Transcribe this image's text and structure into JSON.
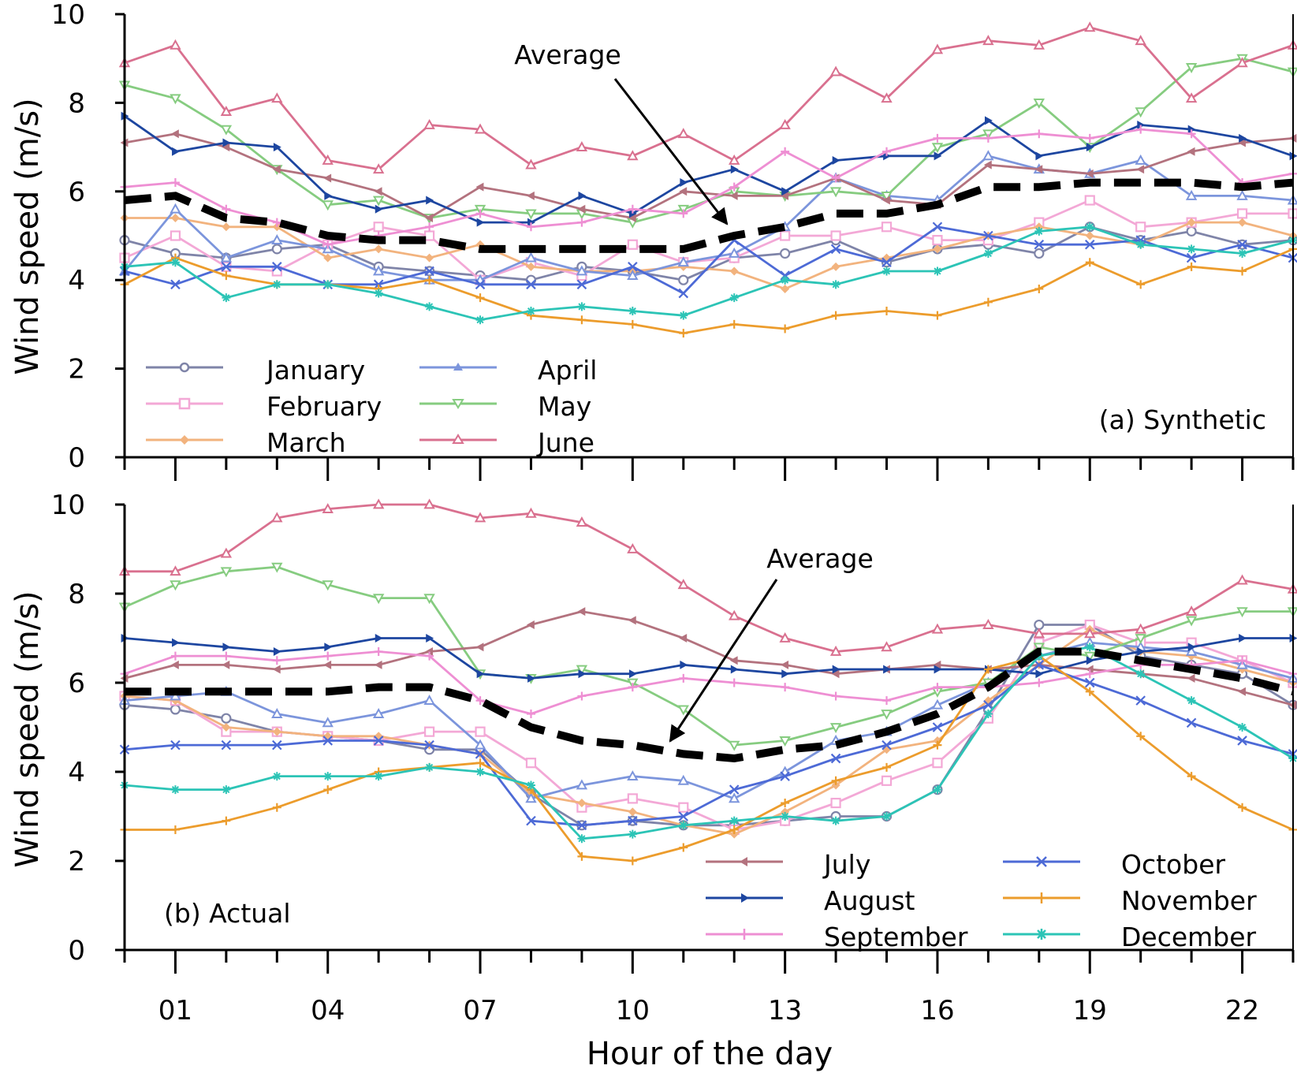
{
  "figure": {
    "xlabel": "Hour of the day",
    "x_ticks": [
      1,
      4,
      7,
      10,
      13,
      16,
      19,
      22
    ],
    "x_tick_labels": [
      "01",
      "04",
      "07",
      "10",
      "13",
      "16",
      "19",
      "22"
    ]
  },
  "colors": {
    "January": "#7f84a8",
    "February": "#f3a8d6",
    "March": "#f2b37e",
    "April": "#7c95dc",
    "May": "#86cc80",
    "June": "#d9708f",
    "July": "#b3727e",
    "August": "#1d46a0",
    "September": "#ee8fd3",
    "October": "#4d6ad6",
    "November": "#ec9c2c",
    "December": "#2cc4b6",
    "Average": "#000000"
  },
  "chart_data": [
    {
      "type": "line",
      "panel_label": "(a) Synthetic",
      "ylabel": "Wind speed (m/s)",
      "xlim": [
        0,
        23
      ],
      "ylim": [
        0,
        10
      ],
      "y_ticks": [
        0,
        2,
        4,
        6,
        8,
        10
      ],
      "x": [
        0,
        1,
        2,
        3,
        4,
        5,
        6,
        7,
        8,
        9,
        10,
        11,
        12,
        13,
        14,
        15,
        16,
        17,
        18,
        19,
        20,
        21,
        22,
        23
      ],
      "legend": [
        "January",
        "February",
        "March",
        "April",
        "May",
        "June"
      ],
      "annotation": "Average",
      "series": [
        {
          "name": "January",
          "marker": "circle",
          "values": [
            4.9,
            4.6,
            4.5,
            4.7,
            4.8,
            4.3,
            4.2,
            4.1,
            4.0,
            4.3,
            4.2,
            4.0,
            4.5,
            4.6,
            4.9,
            4.4,
            4.7,
            4.8,
            4.6,
            5.2,
            4.9,
            5.1,
            4.8,
            4.9
          ]
        },
        {
          "name": "February",
          "marker": "square",
          "values": [
            4.5,
            5.0,
            4.3,
            4.2,
            4.8,
            5.2,
            5.0,
            4.0,
            4.4,
            4.1,
            4.8,
            4.4,
            4.5,
            5.0,
            5.0,
            5.2,
            4.9,
            4.9,
            5.3,
            5.8,
            5.2,
            5.3,
            5.5,
            5.5
          ]
        },
        {
          "name": "March",
          "marker": "diamond",
          "values": [
            5.4,
            5.4,
            5.2,
            5.2,
            4.5,
            4.7,
            4.5,
            4.8,
            4.3,
            4.2,
            4.2,
            4.3,
            4.2,
            3.8,
            4.3,
            4.5,
            4.7,
            5.0,
            5.2,
            5.0,
            4.8,
            5.3,
            5.3,
            5.0
          ]
        },
        {
          "name": "April",
          "marker": "triangle-up",
          "values": [
            4.2,
            5.6,
            4.5,
            4.9,
            4.7,
            4.2,
            4.0,
            4.0,
            4.5,
            4.2,
            4.1,
            4.4,
            4.6,
            5.2,
            6.3,
            5.9,
            5.8,
            6.8,
            6.5,
            6.4,
            6.7,
            5.9,
            5.9,
            5.8
          ]
        },
        {
          "name": "May",
          "marker": "triangle-down",
          "values": [
            8.4,
            8.1,
            7.4,
            6.5,
            5.7,
            5.8,
            5.4,
            5.6,
            5.5,
            5.5,
            5.3,
            5.6,
            6.0,
            5.9,
            6.0,
            5.9,
            7.0,
            7.3,
            8.0,
            7.0,
            7.8,
            8.8,
            9.0,
            8.7
          ]
        },
        {
          "name": "June",
          "marker": "triangle-up",
          "values": [
            8.9,
            9.3,
            7.8,
            8.1,
            6.7,
            6.5,
            7.5,
            7.4,
            6.6,
            7.0,
            6.8,
            7.3,
            6.7,
            7.5,
            8.7,
            8.1,
            9.2,
            9.4,
            9.3,
            9.7,
            9.4,
            8.1,
            8.9,
            9.3
          ]
        },
        {
          "name": "July",
          "marker": "triangle-left",
          "values": [
            7.1,
            7.3,
            7.0,
            6.5,
            6.3,
            6.0,
            5.4,
            6.1,
            5.9,
            5.6,
            5.4,
            6.0,
            5.9,
            5.9,
            6.3,
            5.8,
            5.7,
            6.6,
            6.5,
            6.4,
            6.5,
            6.9,
            7.1,
            7.2
          ]
        },
        {
          "name": "August",
          "marker": "triangle-right",
          "values": [
            7.7,
            6.9,
            7.1,
            7.0,
            5.9,
            5.6,
            5.8,
            5.3,
            5.3,
            5.9,
            5.5,
            6.2,
            6.5,
            6.0,
            6.7,
            6.8,
            6.8,
            7.6,
            6.8,
            7.0,
            7.5,
            7.4,
            7.2,
            6.8
          ]
        },
        {
          "name": "September",
          "marker": "plus",
          "values": [
            6.1,
            6.2,
            5.6,
            5.3,
            4.8,
            5.0,
            5.2,
            5.5,
            5.2,
            5.3,
            5.6,
            5.5,
            6.1,
            6.9,
            6.3,
            6.9,
            7.2,
            7.2,
            7.3,
            7.2,
            7.4,
            7.3,
            6.2,
            6.4
          ]
        },
        {
          "name": "October",
          "marker": "x",
          "values": [
            4.2,
            3.9,
            4.3,
            4.3,
            3.9,
            3.9,
            4.2,
            3.9,
            3.9,
            3.9,
            4.3,
            3.7,
            4.9,
            4.1,
            4.7,
            4.4,
            5.2,
            5.0,
            4.8,
            4.8,
            4.9,
            4.5,
            4.8,
            4.5
          ]
        },
        {
          "name": "November",
          "marker": "plus",
          "values": [
            3.9,
            4.5,
            4.1,
            3.9,
            3.9,
            3.8,
            4.0,
            3.6,
            3.2,
            3.1,
            3.0,
            2.8,
            3.0,
            2.9,
            3.2,
            3.3,
            3.2,
            3.5,
            3.8,
            4.4,
            3.9,
            4.3,
            4.2,
            4.7
          ]
        },
        {
          "name": "December",
          "marker": "asterisk",
          "values": [
            4.3,
            4.4,
            3.6,
            3.9,
            3.9,
            3.7,
            3.4,
            3.1,
            3.3,
            3.4,
            3.3,
            3.2,
            3.6,
            4.0,
            3.9,
            4.2,
            4.2,
            4.6,
            5.1,
            5.2,
            4.8,
            4.7,
            4.6,
            4.9
          ]
        },
        {
          "name": "Average",
          "style": "dashed",
          "values": [
            5.8,
            5.9,
            5.4,
            5.3,
            5.0,
            4.9,
            4.9,
            4.7,
            4.7,
            4.7,
            4.7,
            4.7,
            5.0,
            5.2,
            5.5,
            5.5,
            5.7,
            6.1,
            6.1,
            6.2,
            6.2,
            6.2,
            6.1,
            6.2
          ]
        }
      ]
    },
    {
      "type": "line",
      "panel_label": "(b) Actual",
      "ylabel": "Wind speed (m/s)",
      "xlim": [
        0,
        23
      ],
      "ylim": [
        0,
        10
      ],
      "y_ticks": [
        0,
        2,
        4,
        6,
        8,
        10
      ],
      "x": [
        0,
        1,
        2,
        3,
        4,
        5,
        6,
        7,
        8,
        9,
        10,
        11,
        12,
        13,
        14,
        15,
        16,
        17,
        18,
        19,
        20,
        21,
        22,
        23
      ],
      "legend": [
        "July",
        "August",
        "September",
        "October",
        "November",
        "December"
      ],
      "annotation": "Average",
      "series": [
        {
          "name": "January",
          "marker": "circle",
          "values": [
            5.5,
            5.4,
            5.2,
            4.9,
            4.8,
            4.7,
            4.5,
            4.5,
            3.5,
            2.8,
            2.9,
            2.8,
            2.8,
            2.9,
            3.0,
            3.0,
            3.6,
            5.4,
            7.3,
            7.3,
            6.6,
            6.4,
            6.2,
            5.5
          ]
        },
        {
          "name": "February",
          "marker": "square",
          "values": [
            5.7,
            5.6,
            4.9,
            4.9,
            4.8,
            4.7,
            4.9,
            4.9,
            4.2,
            3.2,
            3.4,
            3.2,
            2.7,
            2.9,
            3.3,
            3.8,
            4.2,
            5.2,
            6.9,
            7.3,
            6.9,
            6.9,
            6.5,
            6.0
          ]
        },
        {
          "name": "March",
          "marker": "diamond",
          "values": [
            5.7,
            5.6,
            5.0,
            4.9,
            4.8,
            4.8,
            4.6,
            4.4,
            3.5,
            3.3,
            3.1,
            2.8,
            2.6,
            3.1,
            3.7,
            4.5,
            4.7,
            5.6,
            6.4,
            7.2,
            6.7,
            6.6,
            6.3,
            6.0
          ]
        },
        {
          "name": "April",
          "marker": "triangle-up",
          "values": [
            5.6,
            5.7,
            5.8,
            5.3,
            5.1,
            5.3,
            5.6,
            4.6,
            3.4,
            3.7,
            3.9,
            3.8,
            3.4,
            4.0,
            4.7,
            4.9,
            5.5,
            6.0,
            6.6,
            6.9,
            6.8,
            6.7,
            6.4,
            6.1
          ]
        },
        {
          "name": "May",
          "marker": "triangle-down",
          "values": [
            7.7,
            8.2,
            8.5,
            8.6,
            8.2,
            7.9,
            7.9,
            6.2,
            6.1,
            6.3,
            6.0,
            5.4,
            4.6,
            4.7,
            5.0,
            5.3,
            5.8,
            6.0,
            6.8,
            6.6,
            7.0,
            7.4,
            7.6,
            7.6
          ]
        },
        {
          "name": "June",
          "marker": "triangle-up",
          "values": [
            8.5,
            8.5,
            8.9,
            9.7,
            9.9,
            10.0,
            10.0,
            9.7,
            9.8,
            9.6,
            9.0,
            8.2,
            7.5,
            7.0,
            6.7,
            6.8,
            7.2,
            7.3,
            7.1,
            7.1,
            7.2,
            7.6,
            8.3,
            8.1
          ]
        },
        {
          "name": "July",
          "marker": "triangle-left",
          "values": [
            6.1,
            6.4,
            6.4,
            6.3,
            6.4,
            6.4,
            6.7,
            6.8,
            7.3,
            7.6,
            7.4,
            7.0,
            6.5,
            6.4,
            6.2,
            6.3,
            6.4,
            6.3,
            6.4,
            6.3,
            6.2,
            6.1,
            5.8,
            5.5
          ]
        },
        {
          "name": "August",
          "marker": "triangle-right",
          "values": [
            7.0,
            6.9,
            6.8,
            6.7,
            6.8,
            7.0,
            7.0,
            6.2,
            6.1,
            6.2,
            6.2,
            6.4,
            6.3,
            6.2,
            6.3,
            6.3,
            6.3,
            6.3,
            6.2,
            6.5,
            6.7,
            6.8,
            7.0,
            7.0
          ]
        },
        {
          "name": "September",
          "marker": "plus",
          "values": [
            6.2,
            6.6,
            6.6,
            6.5,
            6.6,
            6.7,
            6.6,
            5.6,
            5.3,
            5.7,
            5.9,
            6.1,
            6.0,
            5.9,
            5.7,
            5.6,
            5.9,
            5.9,
            6.0,
            6.2,
            6.4,
            6.4,
            6.5,
            6.2
          ]
        },
        {
          "name": "October",
          "marker": "x",
          "values": [
            4.5,
            4.6,
            4.6,
            4.6,
            4.7,
            4.7,
            4.6,
            4.4,
            2.9,
            2.8,
            2.9,
            3.0,
            3.6,
            3.9,
            4.3,
            4.6,
            5.0,
            5.5,
            6.4,
            6.0,
            5.6,
            5.1,
            4.7,
            4.4
          ]
        },
        {
          "name": "November",
          "marker": "plus",
          "values": [
            2.7,
            2.7,
            2.9,
            3.2,
            3.6,
            4.0,
            4.1,
            4.2,
            3.6,
            2.1,
            2.0,
            2.3,
            2.7,
            3.3,
            3.8,
            4.1,
            4.6,
            6.3,
            6.6,
            5.8,
            4.8,
            3.9,
            3.2,
            2.7
          ]
        },
        {
          "name": "December",
          "marker": "asterisk",
          "values": [
            3.7,
            3.6,
            3.6,
            3.9,
            3.9,
            3.9,
            4.1,
            4.0,
            3.7,
            2.5,
            2.6,
            2.8,
            2.9,
            3.0,
            2.9,
            3.0,
            3.6,
            5.3,
            6.6,
            6.8,
            6.2,
            5.6,
            5.0,
            4.3
          ]
        },
        {
          "name": "Average",
          "style": "dashed",
          "values": [
            5.8,
            5.8,
            5.8,
            5.8,
            5.8,
            5.9,
            5.9,
            5.6,
            5.0,
            4.7,
            4.6,
            4.4,
            4.3,
            4.5,
            4.6,
            4.9,
            5.3,
            5.9,
            6.7,
            6.7,
            6.5,
            6.3,
            6.1,
            5.8
          ]
        }
      ]
    }
  ]
}
